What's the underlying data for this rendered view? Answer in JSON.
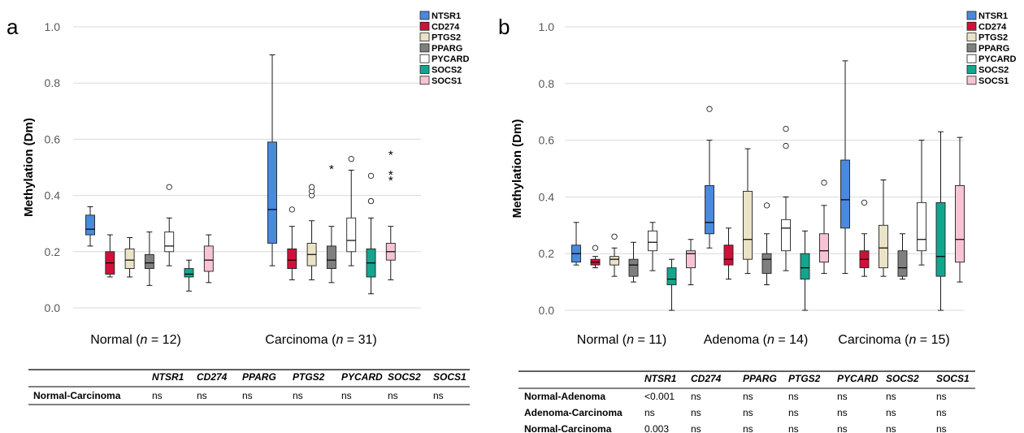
{
  "genes": [
    "NTSR1",
    "CD274",
    "PTGS2",
    "PPARG",
    "PYCARD",
    "SOCS2",
    "SOCS1"
  ],
  "colors": {
    "NTSR1": "#4a89dc",
    "CD274": "#d0103a",
    "PTGS2": "#ebe3c7",
    "PPARG": "#7f7f7f",
    "PYCARD": "#ffffff",
    "SOCS2": "#14a58e",
    "SOCS1": "#f7c4d4"
  },
  "chart_data": [
    {
      "type": "box",
      "panel": "a",
      "ylabel": "Methylation (Dm)",
      "ylim": [
        0,
        1.0
      ],
      "yticks": [
        "0.0",
        "0.2",
        "0.4",
        "0.6",
        "0.8",
        "1.0"
      ],
      "grid": true,
      "legend_position": "top-right",
      "groups": [
        {
          "pre": "Normal (",
          "n_italic": "n",
          "post": " = 12)"
        },
        {
          "pre": "Carcinoma (",
          "n_italic": "n",
          "post": " = 31)"
        }
      ],
      "series": [
        {
          "name": "NTSR1",
          "boxes": [
            {
              "min": 0.22,
              "q1": 0.26,
              "med": 0.28,
              "q3": 0.33,
              "max": 0.36,
              "outliers": [],
              "extremes": []
            },
            {
              "min": 0.15,
              "q1": 0.23,
              "med": 0.35,
              "q3": 0.59,
              "max": 0.9,
              "outliers": [],
              "extremes": []
            }
          ]
        },
        {
          "name": "CD274",
          "boxes": [
            {
              "min": 0.11,
              "q1": 0.12,
              "med": 0.16,
              "q3": 0.2,
              "max": 0.26,
              "outliers": [],
              "extremes": []
            },
            {
              "min": 0.1,
              "q1": 0.14,
              "med": 0.17,
              "q3": 0.21,
              "max": 0.29,
              "outliers": [
                0.35
              ],
              "extremes": []
            }
          ]
        },
        {
          "name": "PTGS2",
          "boxes": [
            {
              "min": 0.11,
              "q1": 0.14,
              "med": 0.17,
              "q3": 0.21,
              "max": 0.25,
              "outliers": [],
              "extremes": []
            },
            {
              "min": 0.1,
              "q1": 0.15,
              "med": 0.19,
              "q3": 0.23,
              "max": 0.31,
              "outliers": [
                0.4,
                0.415,
                0.43
              ],
              "extremes": []
            }
          ]
        },
        {
          "name": "PPARG",
          "boxes": [
            {
              "min": 0.08,
              "q1": 0.14,
              "med": 0.16,
              "q3": 0.19,
              "max": 0.27,
              "outliers": [],
              "extremes": []
            },
            {
              "min": 0.09,
              "q1": 0.14,
              "med": 0.17,
              "q3": 0.22,
              "max": 0.29,
              "outliers": [],
              "extremes": [
                0.5
              ]
            }
          ]
        },
        {
          "name": "PYCARD",
          "boxes": [
            {
              "min": 0.15,
              "q1": 0.2,
              "med": 0.22,
              "q3": 0.27,
              "max": 0.32,
              "outliers": [
                0.43
              ],
              "extremes": []
            },
            {
              "min": 0.15,
              "q1": 0.2,
              "med": 0.24,
              "q3": 0.32,
              "max": 0.49,
              "outliers": [
                0.53
              ],
              "extremes": []
            }
          ]
        },
        {
          "name": "SOCS2",
          "boxes": [
            {
              "min": 0.06,
              "q1": 0.11,
              "med": 0.12,
              "q3": 0.14,
              "max": 0.17,
              "outliers": [],
              "extremes": []
            },
            {
              "min": 0.05,
              "q1": 0.11,
              "med": 0.16,
              "q3": 0.21,
              "max": 0.32,
              "outliers": [
                0.38,
                0.38,
                0.47
              ],
              "extremes": []
            }
          ]
        },
        {
          "name": "SOCS1",
          "boxes": [
            {
              "min": 0.09,
              "q1": 0.13,
              "med": 0.17,
              "q3": 0.22,
              "max": 0.26,
              "outliers": [],
              "extremes": []
            },
            {
              "min": 0.1,
              "q1": 0.17,
              "med": 0.2,
              "q3": 0.23,
              "max": 0.29,
              "outliers": [],
              "extremes": [
                0.46,
                0.48,
                0.55
              ]
            }
          ]
        }
      ]
    },
    {
      "type": "box",
      "panel": "b",
      "ylabel": "Methylation (Dm)",
      "ylim": [
        0,
        1.0
      ],
      "yticks": [
        "0.0",
        "0.2",
        "0.4",
        "0.6",
        "0.8",
        "1.0"
      ],
      "grid": true,
      "legend_position": "top-right",
      "groups": [
        {
          "pre": "Normal (",
          "n_italic": "n",
          "post": " = 11)"
        },
        {
          "pre": "Adenoma (",
          "n_italic": "n",
          "post": " = 14)"
        },
        {
          "pre": "Carcinoma (",
          "n_italic": "n",
          "post": " = 15)"
        }
      ],
      "series": [
        {
          "name": "NTSR1",
          "boxes": [
            {
              "min": 0.16,
              "q1": 0.17,
              "med": 0.2,
              "q3": 0.23,
              "max": 0.31,
              "outliers": [],
              "extremes": []
            },
            {
              "min": 0.22,
              "q1": 0.27,
              "med": 0.31,
              "q3": 0.44,
              "max": 0.6,
              "outliers": [
                0.71
              ],
              "extremes": []
            },
            {
              "min": 0.13,
              "q1": 0.29,
              "med": 0.39,
              "q3": 0.53,
              "max": 0.88,
              "outliers": [],
              "extremes": []
            }
          ]
        },
        {
          "name": "CD274",
          "boxes": [
            {
              "min": 0.15,
              "q1": 0.16,
              "med": 0.17,
              "q3": 0.18,
              "max": 0.19,
              "outliers": [
                0.22
              ],
              "extremes": []
            },
            {
              "min": 0.11,
              "q1": 0.16,
              "med": 0.18,
              "q3": 0.23,
              "max": 0.29,
              "outliers": [],
              "extremes": []
            },
            {
              "min": 0.12,
              "q1": 0.15,
              "med": 0.18,
              "q3": 0.21,
              "max": 0.27,
              "outliers": [
                0.38
              ],
              "extremes": []
            }
          ]
        },
        {
          "name": "PTGS2",
          "boxes": [
            {
              "min": 0.12,
              "q1": 0.16,
              "med": 0.18,
              "q3": 0.19,
              "max": 0.22,
              "outliers": [
                0.26
              ],
              "extremes": []
            },
            {
              "min": 0.13,
              "q1": 0.18,
              "med": 0.25,
              "q3": 0.42,
              "max": 0.57,
              "outliers": [],
              "extremes": []
            },
            {
              "min": 0.12,
              "q1": 0.15,
              "med": 0.22,
              "q3": 0.3,
              "max": 0.46,
              "outliers": [],
              "extremes": []
            }
          ]
        },
        {
          "name": "PPARG",
          "boxes": [
            {
              "min": 0.1,
              "q1": 0.12,
              "med": 0.16,
              "q3": 0.18,
              "max": 0.24,
              "outliers": [],
              "extremes": []
            },
            {
              "min": 0.09,
              "q1": 0.13,
              "med": 0.18,
              "q3": 0.2,
              "max": 0.27,
              "outliers": [
                0.37
              ],
              "extremes": []
            },
            {
              "min": 0.11,
              "q1": 0.12,
              "med": 0.15,
              "q3": 0.21,
              "max": 0.27,
              "outliers": [],
              "extremes": []
            }
          ]
        },
        {
          "name": "PYCARD",
          "boxes": [
            {
              "min": 0.14,
              "q1": 0.21,
              "med": 0.24,
              "q3": 0.28,
              "max": 0.31,
              "outliers": [],
              "extremes": []
            },
            {
              "min": 0.14,
              "q1": 0.21,
              "med": 0.29,
              "q3": 0.32,
              "max": 0.4,
              "outliers": [
                0.58,
                0.64
              ],
              "extremes": []
            },
            {
              "min": 0.16,
              "q1": 0.21,
              "med": 0.25,
              "q3": 0.38,
              "max": 0.6,
              "outliers": [],
              "extremes": []
            }
          ]
        },
        {
          "name": "SOCS2",
          "boxes": [
            {
              "min": 0.0,
              "q1": 0.09,
              "med": 0.11,
              "q3": 0.15,
              "max": 0.18,
              "outliers": [],
              "extremes": []
            },
            {
              "min": 0.0,
              "q1": 0.11,
              "med": 0.15,
              "q3": 0.2,
              "max": 0.28,
              "outliers": [],
              "extremes": []
            },
            {
              "min": 0.0,
              "q1": 0.12,
              "med": 0.19,
              "q3": 0.38,
              "max": 0.63,
              "outliers": [],
              "extremes": []
            }
          ]
        },
        {
          "name": "SOCS1",
          "boxes": [
            {
              "min": 0.09,
              "q1": 0.15,
              "med": 0.2,
              "q3": 0.21,
              "max": 0.25,
              "outliers": [],
              "extremes": []
            },
            {
              "min": 0.13,
              "q1": 0.17,
              "med": 0.21,
              "q3": 0.27,
              "max": 0.37,
              "outliers": [
                0.45
              ],
              "extremes": []
            },
            {
              "min": 0.1,
              "q1": 0.17,
              "med": 0.25,
              "q3": 0.44,
              "max": 0.61,
              "outliers": [],
              "extremes": []
            }
          ]
        }
      ]
    }
  ],
  "tables": {
    "a": {
      "columns": [
        "NTSR1",
        "CD274",
        "PPARG",
        "PTGS2",
        "PYCARD",
        "SOCS2",
        "SOCS1"
      ],
      "rows": [
        {
          "label": "Normal-Carcinoma",
          "values": [
            "ns",
            "ns",
            "ns",
            "ns",
            "ns",
            "ns",
            "ns"
          ]
        }
      ]
    },
    "b": {
      "columns": [
        "NTSR1",
        "CD274",
        "PPARG",
        "PTGS2",
        "PYCARD",
        "SOCS2",
        "SOCS1"
      ],
      "rows": [
        {
          "label": "Normal-Adenoma",
          "values": [
            "<0.001",
            "ns",
            "ns",
            "ns",
            "ns",
            "ns",
            "ns"
          ]
        },
        {
          "label": "Adenoma-Carcinoma",
          "values": [
            "ns",
            "ns",
            "ns",
            "ns",
            "ns",
            "ns",
            "ns"
          ]
        },
        {
          "label": "Normal-Carcinoma",
          "values": [
            "0.003",
            "ns",
            "ns",
            "ns",
            "ns",
            "ns",
            "ns"
          ]
        }
      ]
    }
  }
}
